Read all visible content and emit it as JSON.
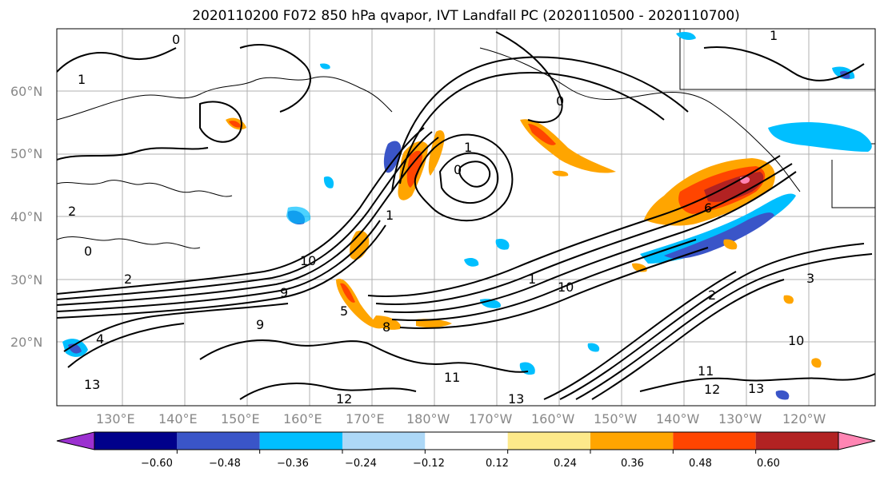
{
  "title": "2020110200 F072 850 hPa qvapor, IVT Landfall PC (2020110500 - 2020110700)",
  "lat_labels": [
    "60°N",
    "50°N",
    "40°N",
    "30°N",
    "20°N"
  ],
  "lon_labels": [
    "130°E",
    "140°E",
    "150°E",
    "160°E",
    "170°E",
    "180°W",
    "170°W",
    "160°W",
    "150°W",
    "140°W",
    "130°W",
    "120°W"
  ],
  "colorbar": {
    "ticks": [
      "−0.60",
      "−0.48",
      "−0.36",
      "−0.24",
      "−0.12",
      "0.12",
      "0.24",
      "0.36",
      "0.48",
      "0.60"
    ],
    "colors": [
      "#9b30d0",
      "#00008b",
      "#3a55c8",
      "#00bfff",
      "#add8f7",
      "#ffffff",
      "#fde98a",
      "#ffa500",
      "#ff4500",
      "#b22222",
      "#ff85b3"
    ]
  },
  "contour_labels": [
    "1",
    "0",
    "1",
    "1",
    "0",
    "2",
    "0",
    "2",
    "1",
    "0",
    "13",
    "4",
    "9",
    "5",
    "9",
    "10",
    "8",
    "12",
    "11",
    "13",
    "10",
    "12",
    "3",
    "2",
    "13",
    "11",
    "10",
    "1",
    "6"
  ],
  "anomaly_colors": {
    "positive_low": "#fde98a",
    "positive_mid": "#ffa500",
    "positive_high": "#ff4500",
    "positive_max": "#b22222",
    "negative_low": "#add8f7",
    "negative_mid": "#00bfff",
    "negative_high": "#3a55c8"
  }
}
